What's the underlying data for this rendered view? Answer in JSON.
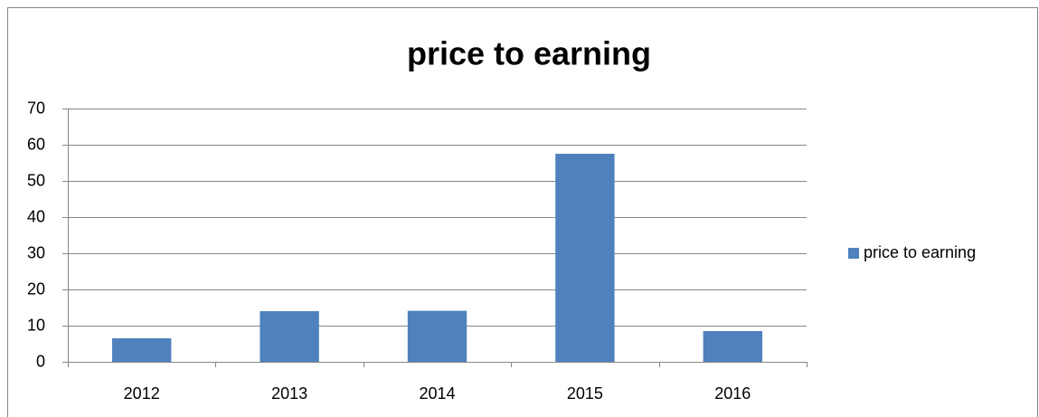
{
  "chart_data": {
    "type": "bar",
    "title": "price to earning",
    "categories": [
      "2012",
      "2013",
      "2014",
      "2015",
      "2016"
    ],
    "series": [
      {
        "name": "price to earning",
        "color": "#4f81bd",
        "values": [
          6.5,
          14,
          14.1,
          57.5,
          8.5
        ]
      }
    ],
    "ylim": [
      0,
      70
    ],
    "yticks": [
      0,
      10,
      20,
      30,
      40,
      50,
      60,
      70
    ],
    "grid": true,
    "legend": "right"
  }
}
